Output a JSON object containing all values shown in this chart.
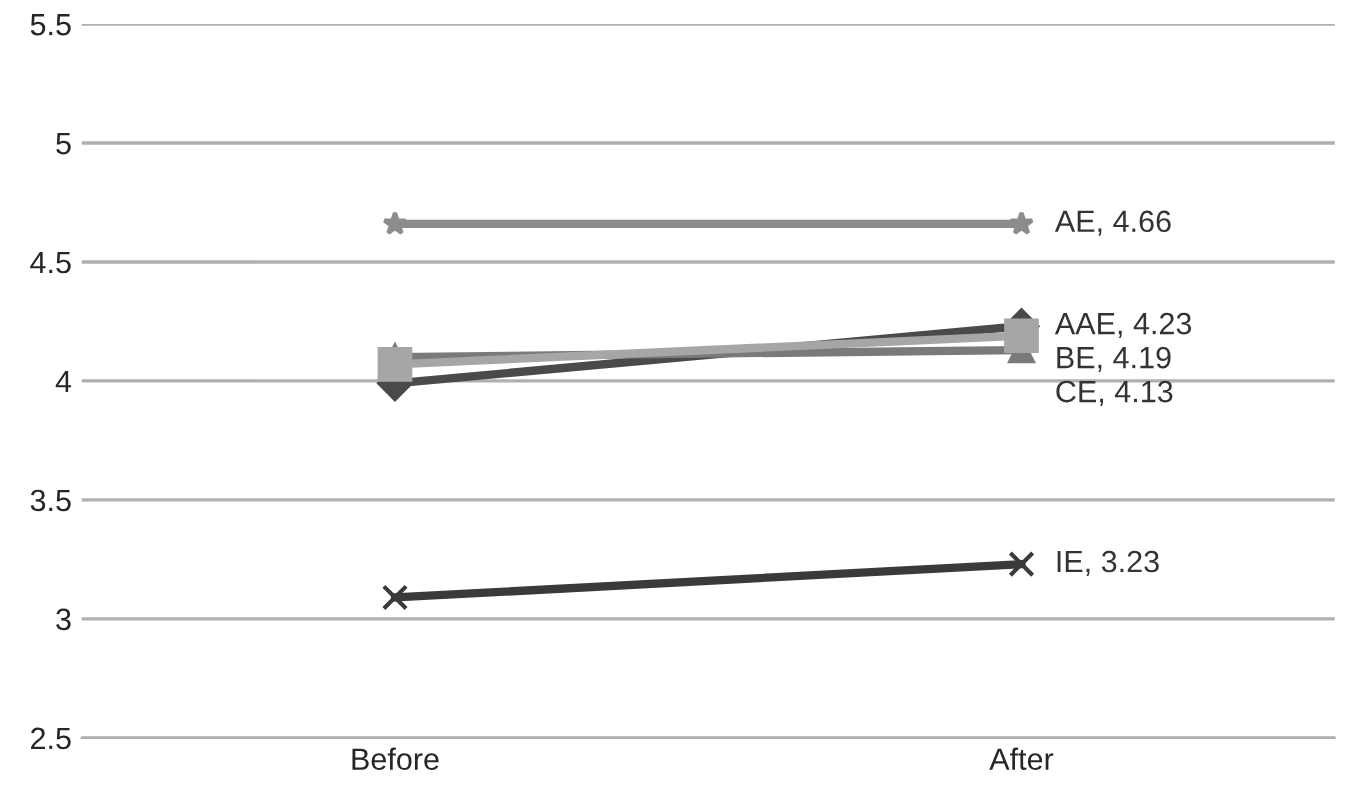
{
  "chart_data": {
    "type": "line",
    "categories": [
      "Before",
      "After"
    ],
    "series": [
      {
        "color": "#8c8c8c",
        "marker": "star",
        "values": [
          4.66,
          4.66
        ],
        "value_labels": [
          null,
          "AE, 4.66"
        ]
      },
      {
        "color": "#4a4a4a",
        "marker": "diamond",
        "values": [
          3.99,
          4.23
        ],
        "value_labels": [
          null,
          "AAE, 4.23"
        ]
      },
      {
        "color": "#a6a6a6",
        "marker": "square",
        "values": [
          4.07,
          4.19
        ],
        "value_labels": [
          null,
          "BE, 4.19"
        ]
      },
      {
        "color": "#7a7a7a",
        "marker": "triangle",
        "values": [
          4.1,
          4.13
        ],
        "value_labels": [
          null,
          "CE, 4.13"
        ]
      },
      {
        "color": "#3a3a3a",
        "marker": "cross",
        "values": [
          3.09,
          3.23
        ],
        "value_labels": [
          null,
          "IE, 3.23"
        ]
      }
    ],
    "ylim": [
      2.5,
      5.5
    ],
    "yticks": [
      2.5,
      3,
      3.5,
      4,
      4.5,
      5,
      5.5
    ],
    "grid": "y",
    "legend": false
  }
}
